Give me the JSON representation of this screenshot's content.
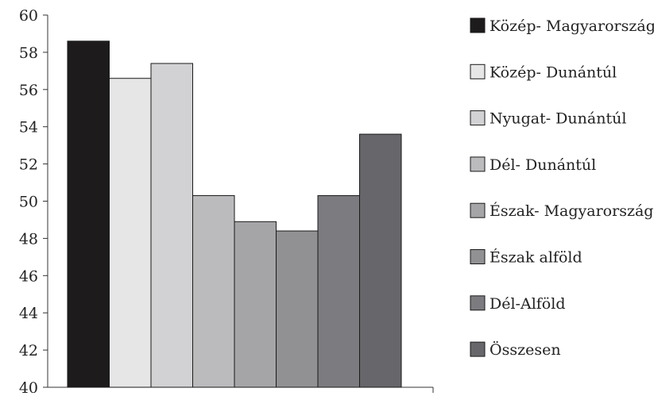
{
  "chart_data": {
    "type": "bar",
    "title": "",
    "xlabel": "",
    "ylabel": "",
    "ylim": [
      40,
      60
    ],
    "yticks": [
      40,
      42,
      44,
      46,
      48,
      50,
      52,
      54,
      56,
      58,
      60
    ],
    "grid": false,
    "legend_position": "right",
    "categories": [
      "Közép- Magyarország",
      "Közép- Dunántúl",
      "Nyugat- Dunántúl",
      "Dél- Dunántúl",
      "Észak- Magyarország",
      "Észak alföld",
      "Dél-Alföld",
      "Összesen"
    ],
    "values": [
      58.6,
      56.6,
      57.4,
      50.3,
      48.9,
      48.4,
      50.3,
      53.6
    ],
    "colors": [
      "#1e1b1c",
      "#e6e6e7",
      "#d2d2d4",
      "#bbbbbe",
      "#a5a5a8",
      "#919194",
      "#7c7c80",
      "#67676b"
    ]
  }
}
